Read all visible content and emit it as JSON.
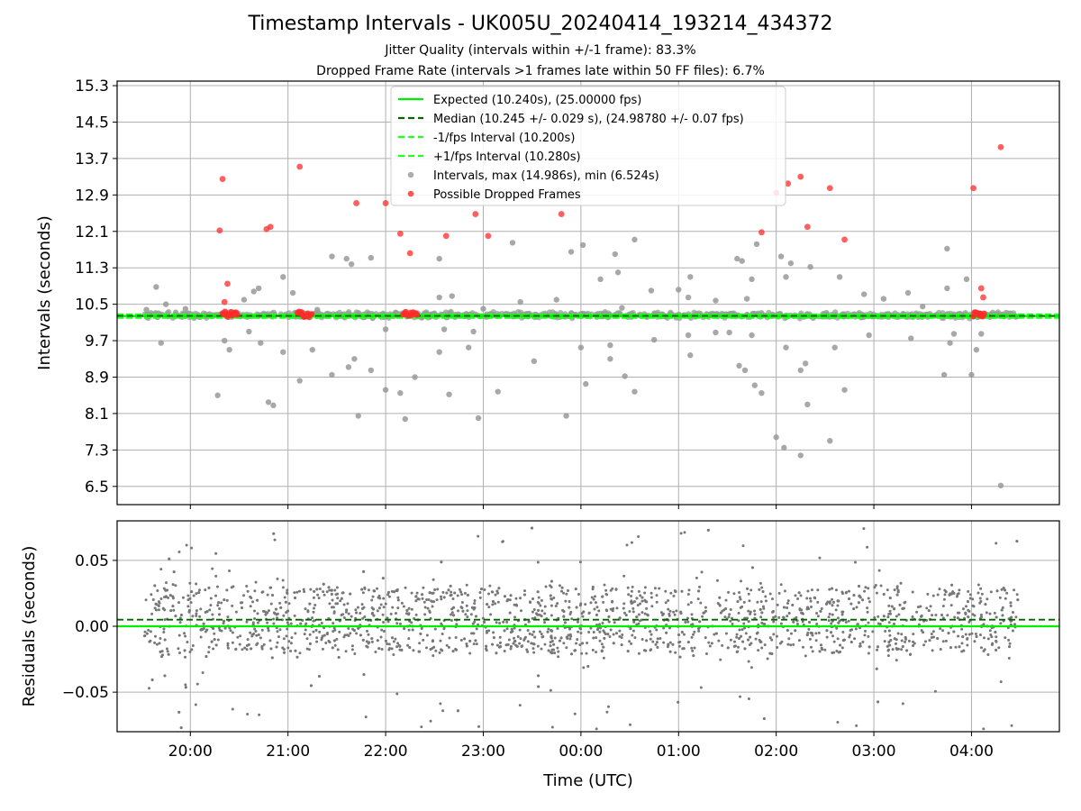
{
  "figure": {
    "title": "Timestamp Intervals - UK005U_20240414_193214_434372",
    "subtitle_jitter": "Jitter Quality (intervals within +/-1 frame): 83.3%",
    "subtitle_dropped": "Dropped Frame Rate (intervals >1 frames late within 50 FF files): 6.7%"
  },
  "colors": {
    "expected": "#00ee00",
    "median": "#006400",
    "interval_band": "#22ff22",
    "intervals": "#999999",
    "dropped": "#ff2a2a",
    "residuals": "#777777",
    "grid": "#b0b0b0"
  },
  "chart_data": [
    {
      "type": "scatter",
      "panel": "intervals",
      "ylabel": "Intervals (seconds)",
      "ylim": [
        6.1,
        15.4
      ],
      "xlim_hours": [
        19.25,
        28.9
      ],
      "y_ticks": [
        "15.3",
        "14.5",
        "13.7",
        "12.9",
        "12.1",
        "11.3",
        "10.5",
        "9.7",
        "8.9",
        "8.1",
        "7.3",
        "6.5"
      ],
      "grid": true,
      "legend_placement": "upper center",
      "legend": [
        {
          "label": "Expected (10.240s), (25.00000 fps)",
          "style": "line-solid",
          "color": "#00ee00"
        },
        {
          "label": "Median (10.245 +/- 0.029 s), (24.98780 +/- 0.07 fps)",
          "style": "line-dashed",
          "color": "#006400"
        },
        {
          "label": "-1/fps Interval (10.200s)",
          "style": "line-dashed",
          "color": "#22ff22"
        },
        {
          "label": "+1/fps Interval (10.280s)",
          "style": "line-dashed",
          "color": "#22ff22"
        },
        {
          "label": "Intervals, max (14.986s), min (6.524s)",
          "style": "marker",
          "color": "#999999"
        },
        {
          "label": "Possible Dropped Frames",
          "style": "marker",
          "color": "#ff2a2a"
        }
      ],
      "reference_lines": {
        "expected": 10.24,
        "median": 10.245,
        "lower": 10.2,
        "upper": 10.28
      },
      "x_range_data_hours": [
        19.53,
        28.48
      ],
      "typical_band": [
        10.12,
        10.4
      ],
      "outliers_gray": [
        [
          19.55,
          10.38
        ],
        [
          19.65,
          10.88
        ],
        [
          19.7,
          9.65
        ],
        [
          19.75,
          10.5
        ],
        [
          19.85,
          10.32
        ],
        [
          19.95,
          10.4
        ],
        [
          20.28,
          8.5
        ],
        [
          20.35,
          9.7
        ],
        [
          20.4,
          9.5
        ],
        [
          20.55,
          10.6
        ],
        [
          20.6,
          9.9
        ],
        [
          20.65,
          10.78
        ],
        [
          20.7,
          10.85
        ],
        [
          20.72,
          9.65
        ],
        [
          20.8,
          8.35
        ],
        [
          20.85,
          8.28
        ],
        [
          20.95,
          9.45
        ],
        [
          20.95,
          11.1
        ],
        [
          21.05,
          10.75
        ],
        [
          21.12,
          8.82
        ],
        [
          21.25,
          9.5
        ],
        [
          21.3,
          10.38
        ],
        [
          21.45,
          11.55
        ],
        [
          21.45,
          8.95
        ],
        [
          21.6,
          11.5
        ],
        [
          21.62,
          9.12
        ],
        [
          21.65,
          11.38
        ],
        [
          21.68,
          9.3
        ],
        [
          21.72,
          8.05
        ],
        [
          21.85,
          9.05
        ],
        [
          21.85,
          11.52
        ],
        [
          22.0,
          8.62
        ],
        [
          22.0,
          9.95
        ],
        [
          22.15,
          8.55
        ],
        [
          22.2,
          7.98
        ],
        [
          22.3,
          8.9
        ],
        [
          22.5,
          10.3
        ],
        [
          22.55,
          11.5
        ],
        [
          22.55,
          10.65
        ],
        [
          22.55,
          9.45
        ],
        [
          22.6,
          9.95
        ],
        [
          22.65,
          8.52
        ],
        [
          22.68,
          10.68
        ],
        [
          22.85,
          9.55
        ],
        [
          22.9,
          9.9
        ],
        [
          22.95,
          8.0
        ],
        [
          23.0,
          10.4
        ],
        [
          23.15,
          8.58
        ],
        [
          23.3,
          11.85
        ],
        [
          23.38,
          10.55
        ],
        [
          23.52,
          9.25
        ],
        [
          23.75,
          10.6
        ],
        [
          23.85,
          8.05
        ],
        [
          23.9,
          11.65
        ],
        [
          24.0,
          9.55
        ],
        [
          24.02,
          11.8
        ],
        [
          24.05,
          8.75
        ],
        [
          24.2,
          11.05
        ],
        [
          24.3,
          9.6
        ],
        [
          24.3,
          9.3
        ],
        [
          24.35,
          11.6
        ],
        [
          24.38,
          11.2
        ],
        [
          24.42,
          10.42
        ],
        [
          24.45,
          8.92
        ],
        [
          24.55,
          8.58
        ],
        [
          24.55,
          11.92
        ],
        [
          24.72,
          10.8
        ],
        [
          24.75,
          9.72
        ],
        [
          25.0,
          10.82
        ],
        [
          25.1,
          10.65
        ],
        [
          25.1,
          9.82
        ],
        [
          25.12,
          9.38
        ],
        [
          25.12,
          11.1
        ],
        [
          25.38,
          10.58
        ],
        [
          25.38,
          9.88
        ],
        [
          25.52,
          9.88
        ],
        [
          25.6,
          11.5
        ],
        [
          25.62,
          9.15
        ],
        [
          25.65,
          11.45
        ],
        [
          25.68,
          9.05
        ],
        [
          25.7,
          10.62
        ],
        [
          25.75,
          11.05
        ],
        [
          25.75,
          9.82
        ],
        [
          25.78,
          8.72
        ],
        [
          25.8,
          11.82
        ],
        [
          25.85,
          8.55
        ],
        [
          26.0,
          7.58
        ],
        [
          26.05,
          11.55
        ],
        [
          26.08,
          7.35
        ],
        [
          26.1,
          9.55
        ],
        [
          26.1,
          11.1
        ],
        [
          26.15,
          11.4
        ],
        [
          26.25,
          9.05
        ],
        [
          26.25,
          7.18
        ],
        [
          26.3,
          9.2
        ],
        [
          26.32,
          8.3
        ],
        [
          26.35,
          11.32
        ],
        [
          26.55,
          7.5
        ],
        [
          26.6,
          9.55
        ],
        [
          26.65,
          11.1
        ],
        [
          26.7,
          8.62
        ],
        [
          26.9,
          10.72
        ],
        [
          26.95,
          9.82
        ],
        [
          27.1,
          10.62
        ],
        [
          27.35,
          10.75
        ],
        [
          27.38,
          9.75
        ],
        [
          27.75,
          11.72
        ],
        [
          27.75,
          10.85
        ],
        [
          27.78,
          9.65
        ],
        [
          27.82,
          9.85
        ],
        [
          27.95,
          11.05
        ],
        [
          28.0,
          8.95
        ],
        [
          27.72,
          8.95
        ],
        [
          28.05,
          9.5
        ],
        [
          28.1,
          9.85
        ],
        [
          28.3,
          6.52
        ],
        [
          27.5,
          10.45
        ]
      ],
      "dropped_frames": [
        [
          20.3,
          12.12
        ],
        [
          20.33,
          13.25
        ],
        [
          20.38,
          10.95
        ],
        [
          20.35,
          10.55
        ],
        [
          20.78,
          12.15
        ],
        [
          20.82,
          12.2
        ],
        [
          21.12,
          13.52
        ],
        [
          21.7,
          12.72
        ],
        [
          22.0,
          12.72
        ],
        [
          22.15,
          12.05
        ],
        [
          22.25,
          11.62
        ],
        [
          22.62,
          12.0
        ],
        [
          22.92,
          12.48
        ],
        [
          23.05,
          12.0
        ],
        [
          23.8,
          12.48
        ],
        [
          25.85,
          12.08
        ],
        [
          26.0,
          12.95
        ],
        [
          26.12,
          13.15
        ],
        [
          26.25,
          13.3
        ],
        [
          26.32,
          12.2
        ],
        [
          26.55,
          13.05
        ],
        [
          26.7,
          11.92
        ],
        [
          28.02,
          13.05
        ],
        [
          28.1,
          10.85
        ],
        [
          28.12,
          10.65
        ],
        [
          28.3,
          13.95
        ]
      ],
      "dropped_clusters": [
        {
          "x_start": 20.33,
          "x_end": 20.48,
          "y": 10.28
        },
        {
          "x_start": 21.1,
          "x_end": 21.24,
          "y": 10.28
        },
        {
          "x_start": 22.18,
          "x_end": 22.32,
          "y": 10.28
        },
        {
          "x_start": 28.02,
          "x_end": 28.13,
          "y": 10.28
        }
      ]
    },
    {
      "type": "scatter",
      "panel": "residuals",
      "ylabel": "Residuals (seconds)",
      "xlabel": "Time (UTC)",
      "ylim": [
        -0.08,
        0.08
      ],
      "y_ticks": [
        "0.05",
        "0.00",
        "−0.05"
      ],
      "x_ticks": [
        "20:00",
        "21:00",
        "22:00",
        "23:00",
        "00:00",
        "01:00",
        "02:00",
        "03:00",
        "04:00"
      ],
      "x_tick_hours": [
        20,
        21,
        22,
        23,
        24,
        25,
        26,
        27,
        28
      ],
      "grid": true,
      "reference_lines": {
        "expected": 0.0,
        "median": 0.005
      },
      "x_range_data_hours": [
        19.53,
        28.48
      ],
      "residual_spread": {
        "typical_min": -0.02,
        "typical_max": 0.03,
        "extreme_min": -0.08,
        "extreme_max": 0.075
      }
    }
  ]
}
